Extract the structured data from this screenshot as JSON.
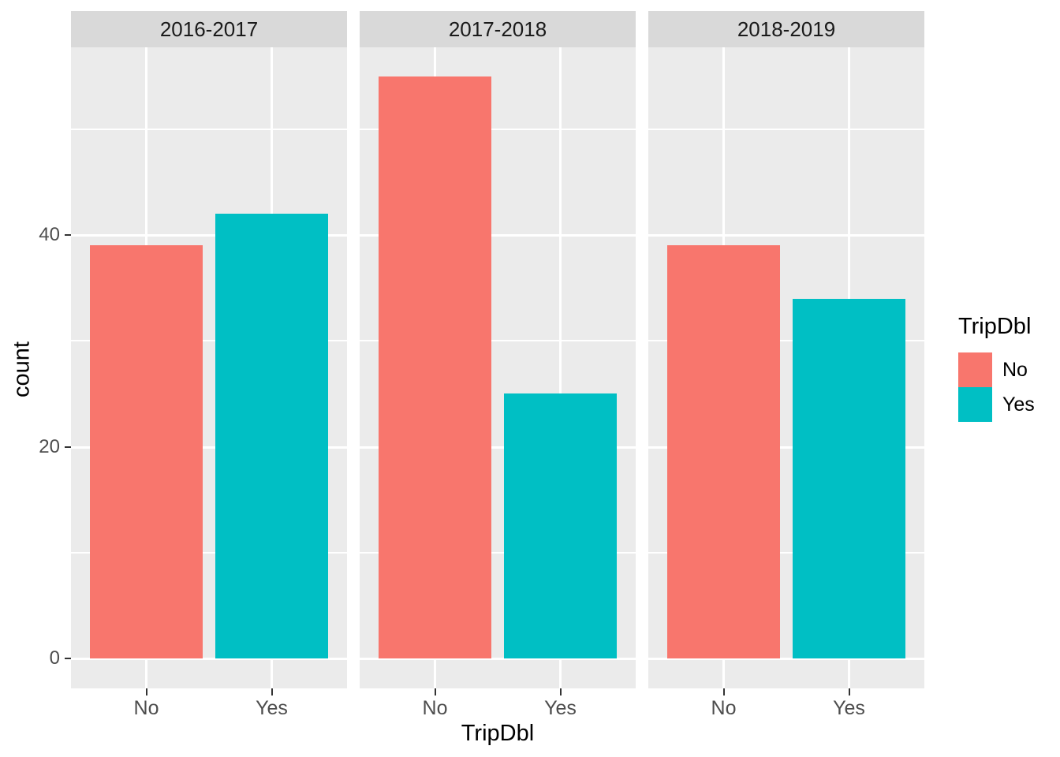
{
  "chart_data": {
    "type": "bar",
    "categories": [
      "No",
      "Yes"
    ],
    "facets": [
      {
        "label": "2016-2017",
        "values": [
          39,
          42
        ]
      },
      {
        "label": "2017-2018",
        "values": [
          55,
          25
        ]
      },
      {
        "label": "2018-2019",
        "values": [
          39,
          34
        ]
      }
    ],
    "series": [
      {
        "name": "No",
        "color": "#F8766D"
      },
      {
        "name": "Yes",
        "color": "#00BFC4"
      }
    ],
    "xlabel": "TripDbl",
    "ylabel": "count",
    "legend_title": "TripDbl",
    "legend_position": "right",
    "y_major_ticks": [
      0,
      20,
      40
    ],
    "y_minor_ticks": [
      10,
      30,
      50
    ],
    "ylim": [
      -2.75,
      57.75
    ],
    "grid": true,
    "colors": {
      "panel_background": "#EBEBEB",
      "strip_background": "#D9D9D9",
      "gridline": "#FFFFFF",
      "axis_text": "#4D4D4D",
      "title_text": "#000000"
    }
  }
}
